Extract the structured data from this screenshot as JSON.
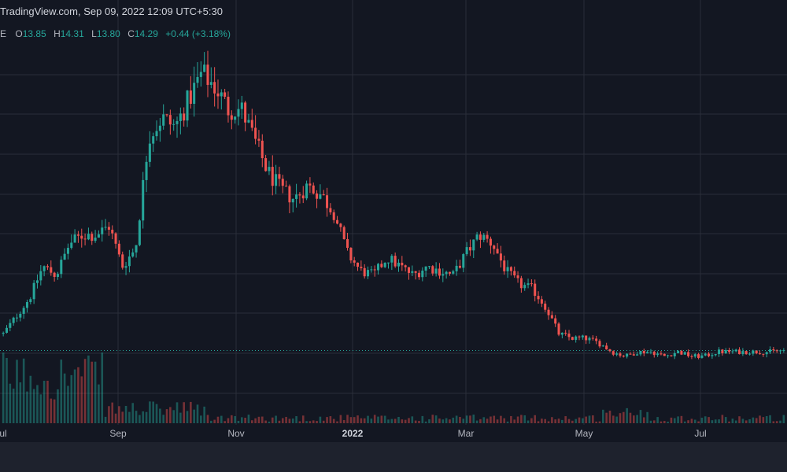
{
  "header": {
    "watermark": "TradingView.com, Sep 09, 2022 12:09 UTC+5:30",
    "symbol_fragment": "E",
    "ohlc": [
      {
        "label": "O",
        "value": "13.85"
      },
      {
        "label": "H",
        "value": "14.31"
      },
      {
        "label": "L",
        "value": "13.80"
      },
      {
        "label": "C",
        "value": "14.29"
      }
    ],
    "change": "+0.44 (+3.18%)"
  },
  "colors": {
    "background": "#131722",
    "up": "#26a69a",
    "down": "#ef5350",
    "grid": "#2a2e39",
    "price_line": "#26a69a",
    "text": "#b2b5be"
  },
  "chart_data": {
    "type": "candlestick",
    "title": "",
    "xlabel": "",
    "ylabel": "",
    "time_range": [
      "2021-07-20",
      "2022-09-09"
    ],
    "x_ticks": [
      "ul",
      "Sep",
      "Nov",
      "2022",
      "Mar",
      "May",
      "Jul"
    ],
    "last_close": 14.29,
    "grid": true,
    "price_series": {
      "dates": [
        "2021-07-20",
        "2021-07-27",
        "2021-08-03",
        "2021-08-10",
        "2021-08-17",
        "2021-08-24",
        "2021-08-31",
        "2021-09-07",
        "2021-09-14",
        "2021-09-21",
        "2021-09-28",
        "2021-10-05",
        "2021-10-12",
        "2021-10-19",
        "2021-10-26",
        "2021-11-02",
        "2021-11-09",
        "2021-11-16",
        "2021-11-23",
        "2021-11-30",
        "2021-12-07",
        "2021-12-14",
        "2021-12-21",
        "2021-12-28",
        "2022-01-04",
        "2022-01-11",
        "2022-01-18",
        "2022-01-25",
        "2022-02-01",
        "2022-02-08",
        "2022-02-15",
        "2022-02-22",
        "2022-03-01",
        "2022-03-08",
        "2022-03-15",
        "2022-03-22",
        "2022-03-29",
        "2022-04-05",
        "2022-04-12",
        "2022-04-19",
        "2022-04-26",
        "2022-05-03",
        "2022-05-10",
        "2022-05-17",
        "2022-05-24",
        "2022-05-31",
        "2022-06-07",
        "2022-06-14",
        "2022-06-21",
        "2022-06-28",
        "2022-07-05",
        "2022-07-12",
        "2022-07-19",
        "2022-07-26",
        "2022-08-02",
        "2022-08-09",
        "2022-08-16",
        "2022-08-23",
        "2022-08-30",
        "2022-09-06"
      ],
      "close": [
        18,
        22,
        26,
        33,
        31,
        38,
        40,
        40,
        42,
        33,
        37,
        62,
        66,
        64,
        70,
        76,
        73,
        68,
        68,
        61,
        54,
        50,
        48,
        51,
        49,
        45,
        36,
        32,
        31,
        35,
        33,
        31,
        33,
        32,
        31,
        36,
        40,
        38,
        32,
        29,
        28,
        24,
        18,
        17,
        17,
        16,
        14,
        13,
        14,
        14,
        13,
        14,
        13,
        13,
        14,
        14,
        14,
        14,
        14,
        14.29
      ]
    },
    "volume": "varies; highest bars at left (Jul–Aug 2021) and a cluster near May 2022"
  }
}
